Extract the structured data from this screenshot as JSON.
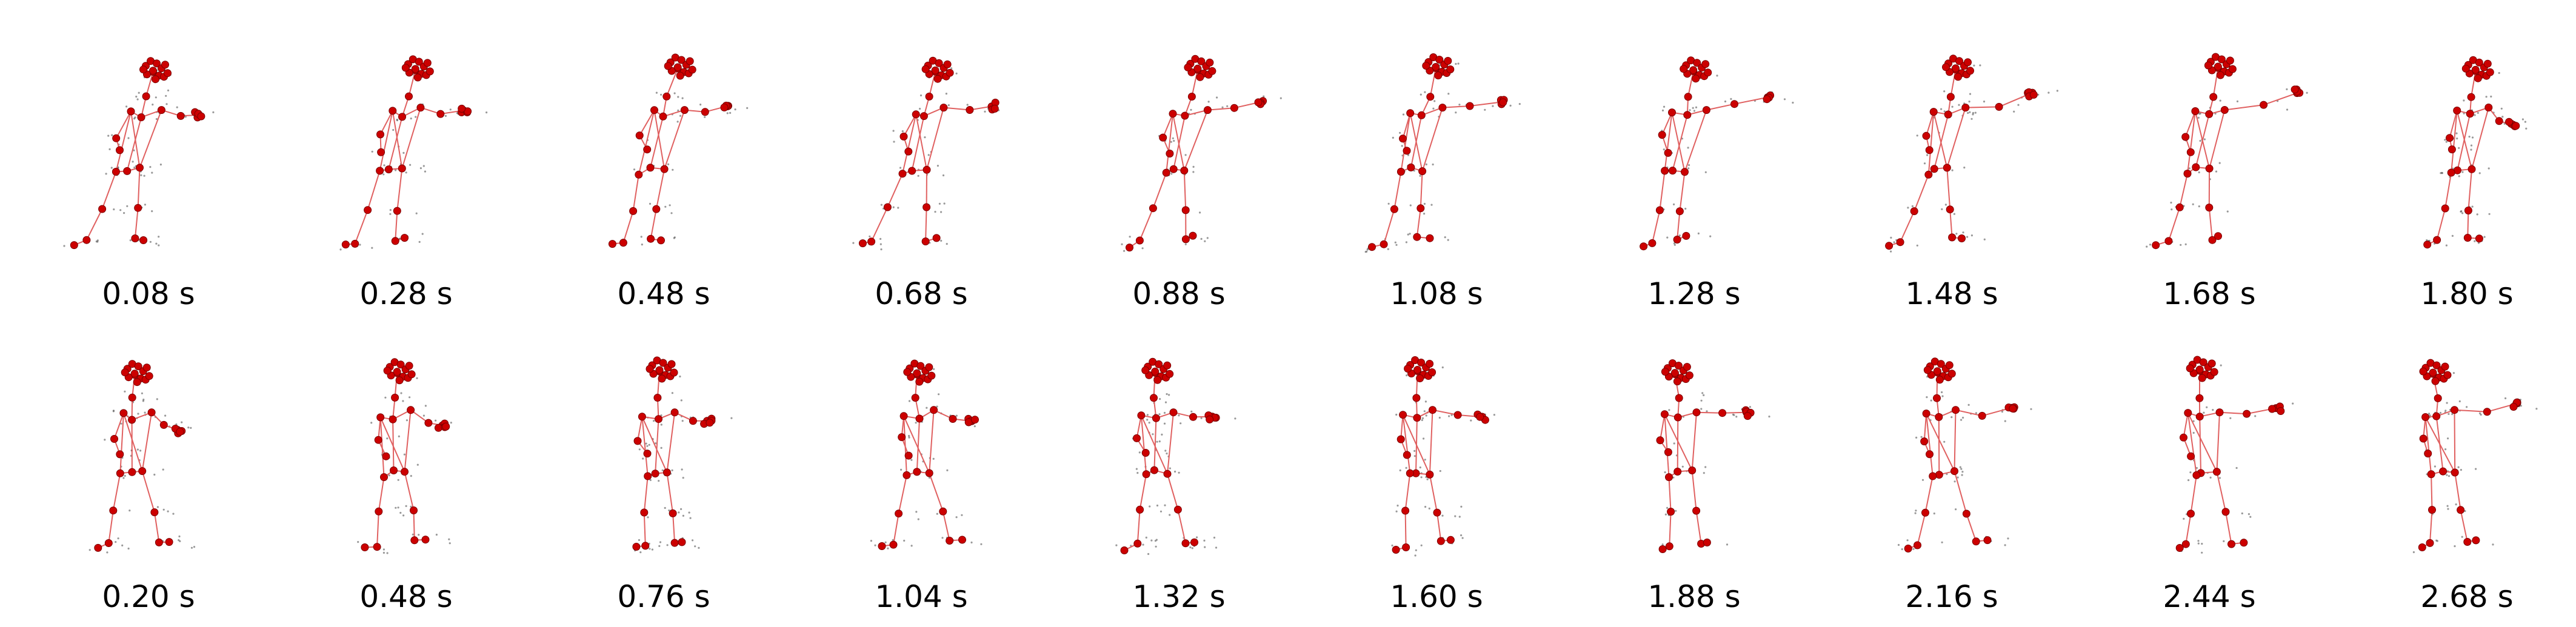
{
  "colors": {
    "joint": "#cc0000",
    "bone": "#e06060",
    "trace": "#555555",
    "caption": "#000000"
  },
  "rows": [
    {
      "frames": [
        {
          "time_label": "0.08 s"
        },
        {
          "time_label": "0.28 s"
        },
        {
          "time_label": "0.48 s"
        },
        {
          "time_label": "0.68 s"
        },
        {
          "time_label": "0.88 s"
        },
        {
          "time_label": "1.08 s"
        },
        {
          "time_label": "1.28 s"
        },
        {
          "time_label": "1.48 s"
        },
        {
          "time_label": "1.68 s"
        },
        {
          "time_label": "1.80 s"
        }
      ]
    },
    {
      "frames": [
        {
          "time_label": "0.20 s"
        },
        {
          "time_label": "0.48 s"
        },
        {
          "time_label": "0.76 s"
        },
        {
          "time_label": "1.04 s"
        },
        {
          "time_label": "1.32 s"
        },
        {
          "time_label": "1.60 s"
        },
        {
          "time_label": "1.88 s"
        },
        {
          "time_label": "2.16 s"
        },
        {
          "time_label": "2.44 s"
        },
        {
          "time_label": "2.68 s"
        }
      ]
    }
  ]
}
